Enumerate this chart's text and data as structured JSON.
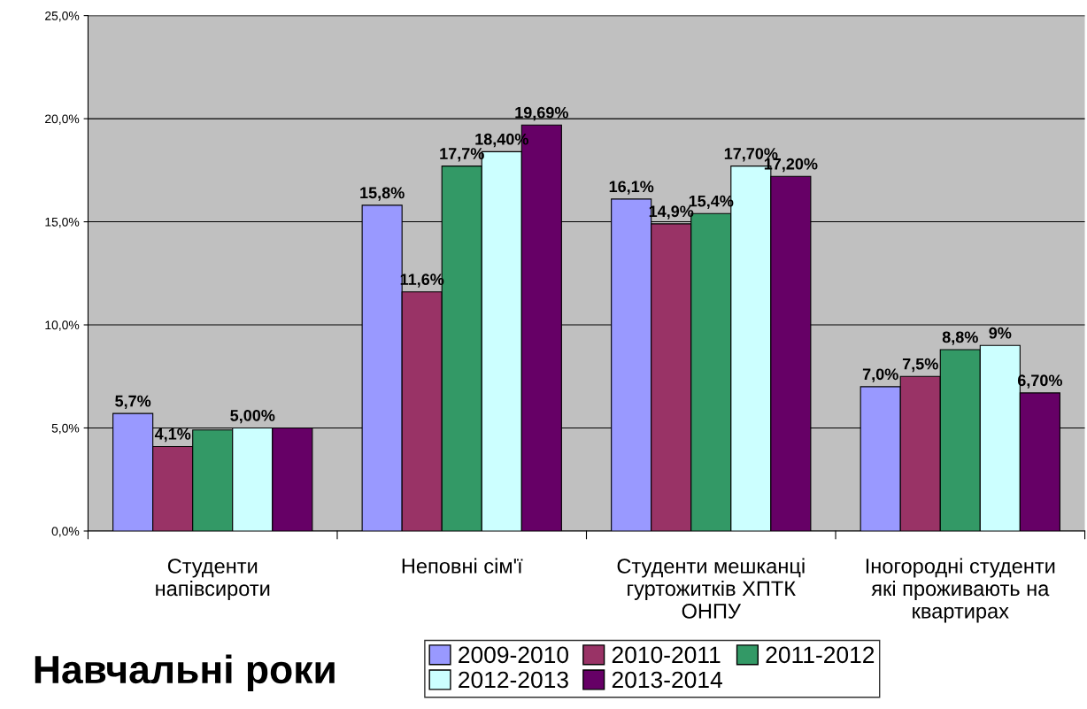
{
  "chart_data": {
    "type": "bar",
    "categories": [
      "Студенти\nнапівсироти",
      "Неповні сім'ї",
      "Студенти мешканці\nгуртожитків ХПТК\nОНПУ",
      "Іногородні студенти\nякі проживають на\nквартирах"
    ],
    "series": [
      {
        "name": "2009-2010",
        "color": "#9999ff",
        "values": [
          5.7,
          15.8,
          16.1,
          7.0
        ],
        "value_labels": [
          "5,7%",
          "15,8%",
          "16,1%",
          "7,0%"
        ]
      },
      {
        "name": "2010-2011",
        "color": "#993366",
        "values": [
          4.1,
          11.6,
          14.9,
          7.5
        ],
        "value_labels": [
          "4,1%",
          "11,6%",
          "14,9%",
          "7,5%"
        ]
      },
      {
        "name": "2011-2012",
        "color": "#339966",
        "values": [
          4.9,
          17.7,
          15.4,
          8.8
        ],
        "value_labels": [
          null,
          "17,7%",
          "15,4%",
          "8,8%"
        ]
      },
      {
        "name": "2012-2013",
        "color": "#ccffff",
        "values": [
          5.0,
          18.4,
          17.7,
          9.0
        ],
        "value_labels": [
          "5,00%",
          "18,40%",
          "17,70%",
          "9%"
        ]
      },
      {
        "name": "2013-2014",
        "color": "#660066",
        "values": [
          5.0,
          19.69,
          17.2,
          6.7
        ],
        "value_labels": [
          null,
          "19,69%",
          "17,20%",
          "6,70%"
        ]
      }
    ],
    "ylim": [
      0,
      25
    ],
    "yticks": [
      {
        "value": 0,
        "label": "0,0%"
      },
      {
        "value": 5,
        "label": "5,0%"
      },
      {
        "value": 10,
        "label": "10,0%"
      },
      {
        "value": 15,
        "label": "15,0%"
      },
      {
        "value": 20,
        "label": "20,0%"
      },
      {
        "value": 25,
        "label": "25,0%"
      }
    ],
    "grid": "y",
    "legend": "bottom",
    "annotations": [
      "Навчальні роки"
    ]
  }
}
